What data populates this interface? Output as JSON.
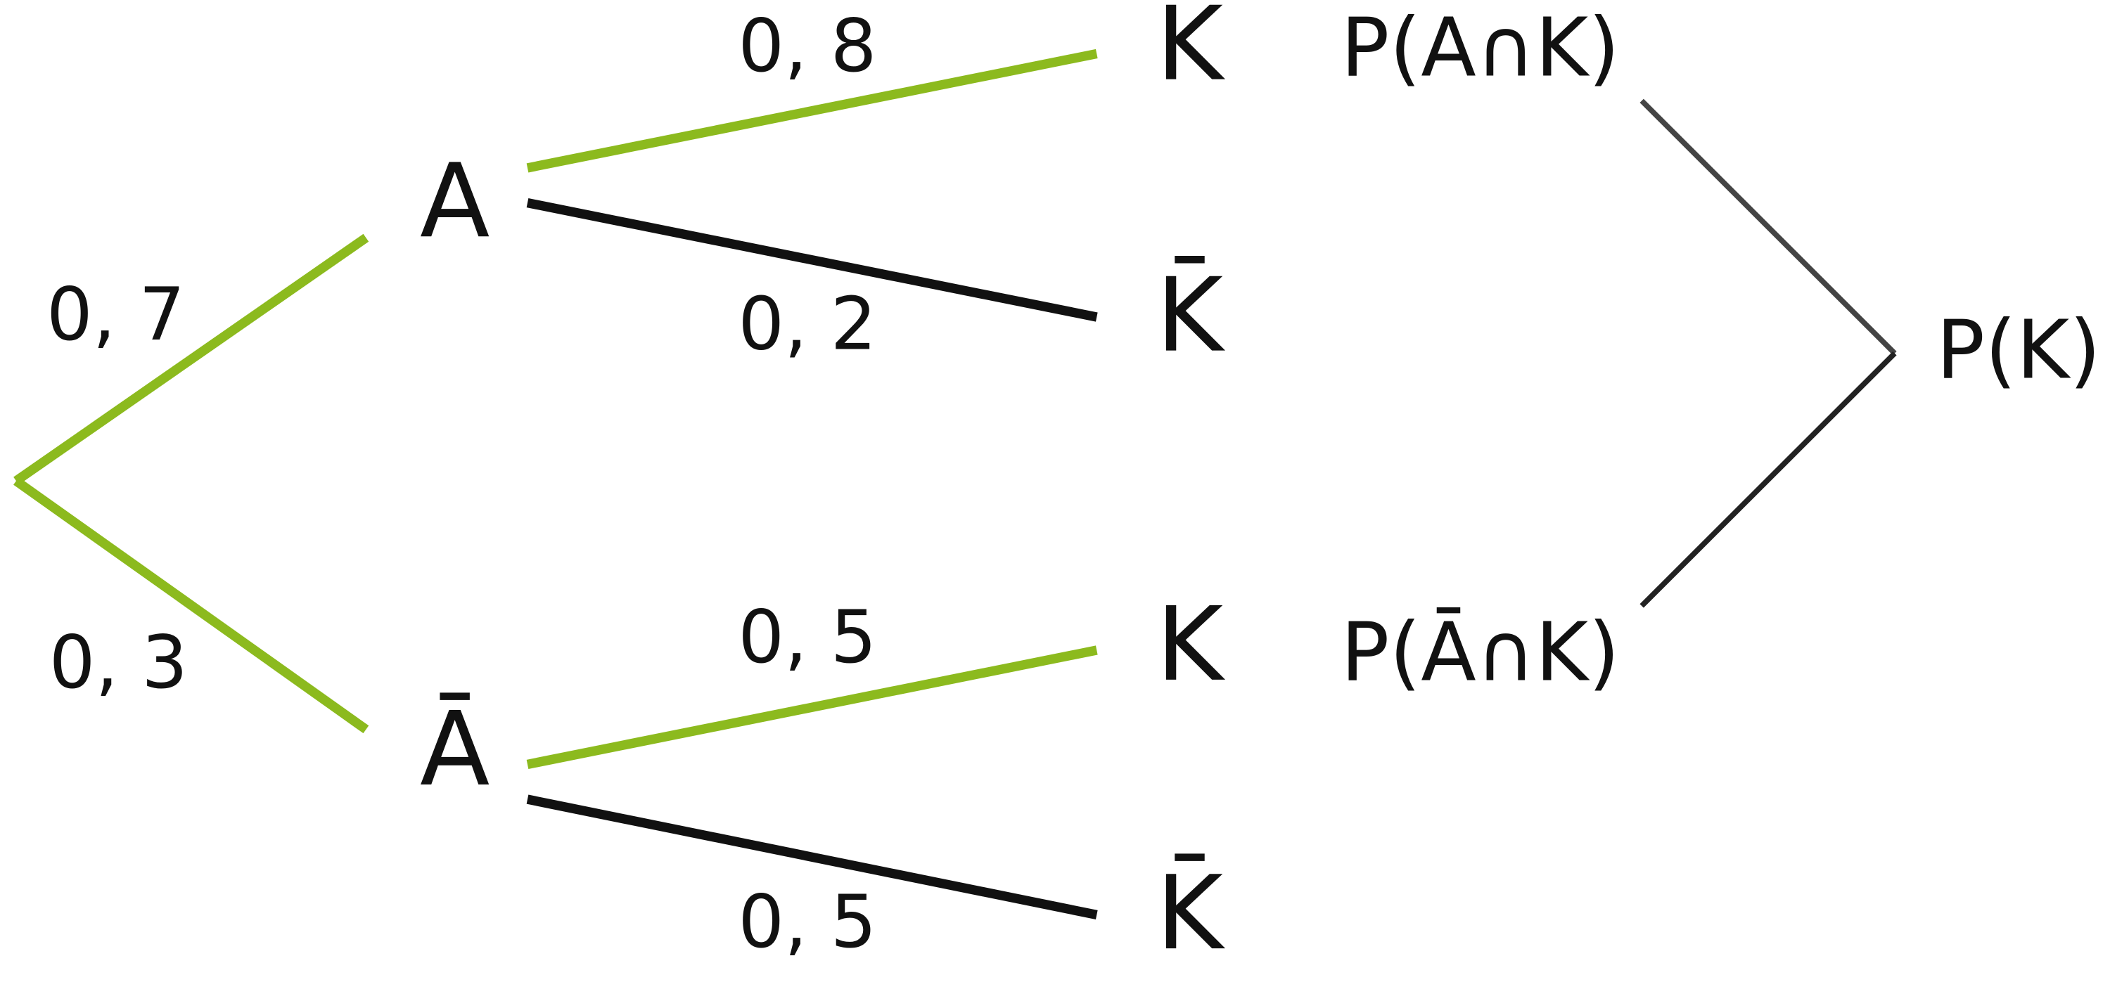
{
  "root_edges": [
    {
      "label": "0, 7",
      "target": "A"
    },
    {
      "label": "0, 3",
      "target": "Ā"
    }
  ],
  "second_edges": [
    {
      "label": "0, 8",
      "target": "K"
    },
    {
      "label": "0, 2",
      "target": "K̄"
    },
    {
      "label": "0, 5",
      "target": "K"
    },
    {
      "label": "0, 5",
      "target": "K̄"
    }
  ],
  "results": {
    "upper": "P(A∩K)",
    "lower": "P(Ā∩K)",
    "total": "P(K)"
  }
}
